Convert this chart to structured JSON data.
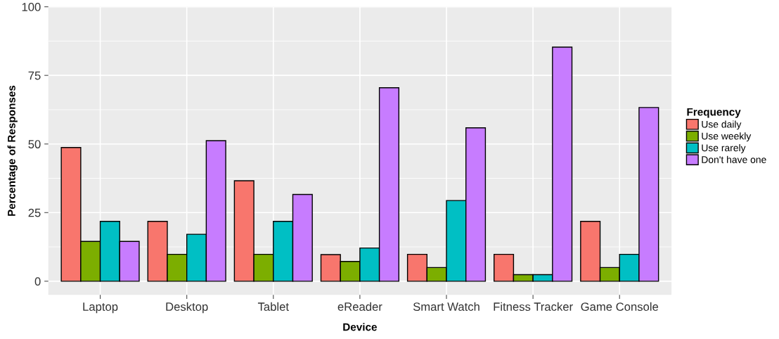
{
  "chart_data": {
    "type": "bar",
    "xlabel": "Device",
    "ylabel": "Percentage of Responses",
    "legend_title": "Frequency",
    "categories": [
      "Laptop",
      "Desktop",
      "Tablet",
      "eReader",
      "Smart Watch",
      "Fitness Tracker",
      "Game Console"
    ],
    "series": [
      {
        "name": "Use daily",
        "color": "#f8766d",
        "values": [
          48.7,
          21.8,
          36.6,
          9.7,
          9.8,
          9.8,
          21.8
        ]
      },
      {
        "name": "Use weekly",
        "color": "#7cae00",
        "values": [
          14.5,
          9.8,
          9.8,
          7.2,
          5.0,
          2.4,
          5.0
        ]
      },
      {
        "name": "Use rarely",
        "color": "#00bfc4",
        "values": [
          21.8,
          17.1,
          21.8,
          12.1,
          29.4,
          2.4,
          9.8
        ]
      },
      {
        "name": "Don't have one",
        "color": "#c77cff",
        "values": [
          14.5,
          51.2,
          31.6,
          70.5,
          55.9,
          85.3,
          63.3
        ]
      }
    ],
    "ylim": [
      -5,
      100
    ],
    "yticks": [
      0,
      25,
      50,
      75,
      100
    ],
    "grid": true,
    "legend": "right"
  }
}
